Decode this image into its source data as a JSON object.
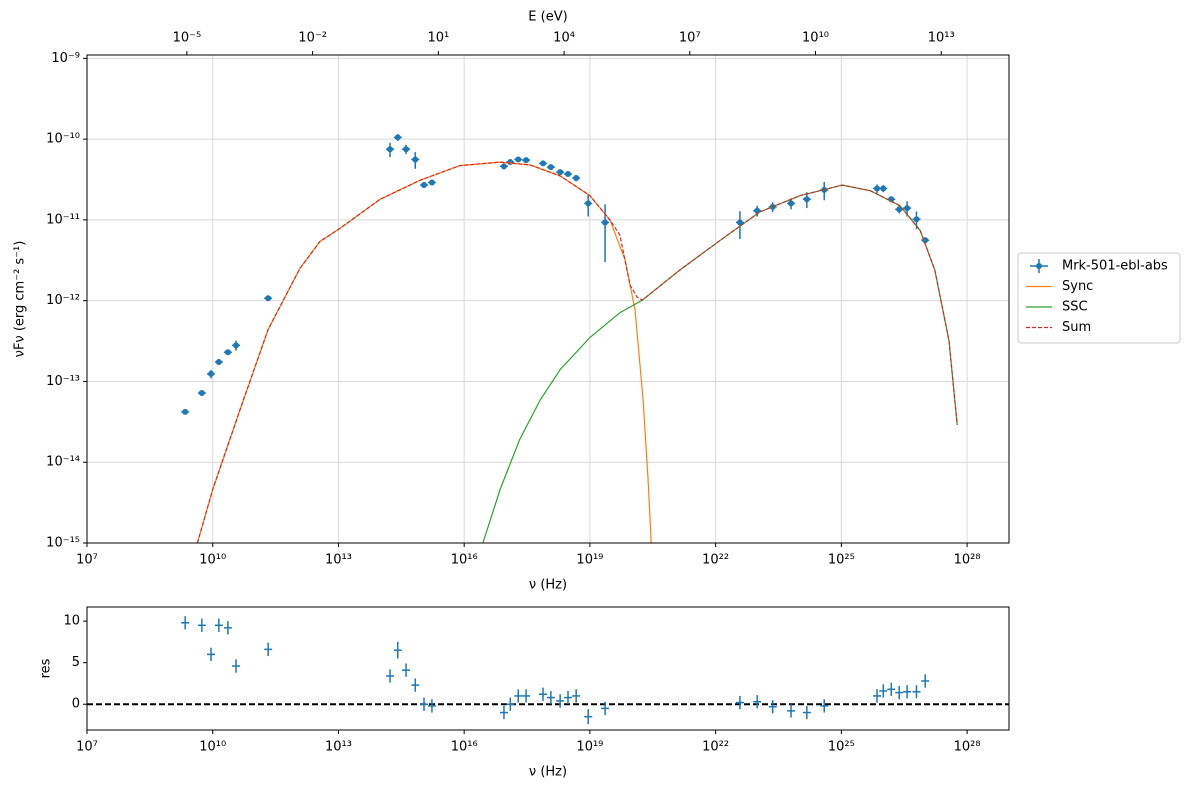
{
  "chart_data": [
    {
      "type": "sed",
      "xlabel": "ν  (Hz)",
      "ylabel": "νFν  (erg cm⁻²  s⁻¹)",
      "x2label": "E (eV)",
      "xlog": true,
      "ylog": true,
      "grid": true,
      "legend": "outside right",
      "xlim": [
        10000000.0,
        1e+29
      ],
      "ylim": [
        1e-15,
        1.1e-09
      ],
      "xticks": [
        {
          "value": 10000000.0,
          "label": "10⁷"
        },
        {
          "value": 10000000000.0,
          "label": "10¹⁰"
        },
        {
          "value": 10000000000000.0,
          "label": "10¹³"
        },
        {
          "value": 1e+16,
          "label": "10¹⁶"
        },
        {
          "value": 1e+19,
          "label": "10¹⁹"
        },
        {
          "value": 1e+22,
          "label": "10²²"
        },
        {
          "value": 1e+25,
          "label": "10²⁵"
        },
        {
          "value": 1e+28,
          "label": "10²⁸"
        }
      ],
      "yticks": [
        {
          "value": 1e-15,
          "label": "10⁻¹⁵"
        },
        {
          "value": 1e-14,
          "label": "10⁻¹⁴"
        },
        {
          "value": 1e-13,
          "label": "10⁻¹³"
        },
        {
          "value": 1e-12,
          "label": "10⁻¹²"
        },
        {
          "value": 1e-11,
          "label": "10⁻¹¹"
        },
        {
          "value": 1e-10,
          "label": "10⁻¹⁰"
        },
        {
          "value": 1e-09,
          "label": "10⁻⁹"
        }
      ],
      "x2lim": [
        4.136e-08,
        413600000000000.0
      ],
      "x2ticks": [
        {
          "value": 1e-05,
          "label": "10⁻⁵"
        },
        {
          "value": 0.01,
          "label": "10⁻²"
        },
        {
          "value": 10,
          "label": "10¹"
        },
        {
          "value": 10000.0,
          "label": "10⁴"
        },
        {
          "value": 10000000.0,
          "label": "10⁷"
        },
        {
          "value": 10000000000.0,
          "label": "10¹⁰"
        },
        {
          "value": 10000000000000.0,
          "label": "10¹³"
        }
      ],
      "series": [
        {
          "name": "Mrk-501-ebl-abs",
          "color": "#1f77b4",
          "style": "errorbar",
          "marker": "circle",
          "x": [
            2200000000.0,
            5500000000.0,
            9100000000.0,
            14000000000.0,
            23000000000.0,
            36000000000.0,
            210000000000.0,
            170000000000000.0,
            260000000000000.0,
            410000000000000.0,
            680000000000000.0,
            1100000000000000.0,
            1700000000000000.0,
            8.9e+16,
            1.26e+17,
            1.95e+17,
            3e+17,
            7.6e+17,
            1.17e+18,
            1.95e+18,
            3e+18,
            4.7e+18,
            9.1e+18,
            2.3e+19,
            3.8e+22,
            9.8e+22,
            2.3e+23,
            6.3e+23,
            1.5e+24,
            3.9e+24,
            7.1e+25,
            1e+26,
            1.55e+26,
            2.4e+26,
            3.7e+26,
            6.2e+26,
            1e+27
          ],
          "values": [
            4.2e-14,
            7.2e-14,
            1.24e-13,
            1.74e-13,
            2.3e-13,
            2.8e-13,
            1.07e-12,
            7.5e-11,
            1.05e-10,
            7.5e-11,
            5.6e-11,
            2.7e-11,
            2.9e-11,
            4.6e-11,
            5.2e-11,
            5.6e-11,
            5.5e-11,
            5e-11,
            4.5e-11,
            3.9e-11,
            3.7e-11,
            3.3e-11,
            1.6e-11,
            9.3e-12,
            9.3e-12,
            1.3e-11,
            1.45e-11,
            1.6e-11,
            1.8e-11,
            2.35e-11,
            2.45e-11,
            2.45e-11,
            1.8e-11,
            1.35e-11,
            1.4e-11,
            1.02e-11,
            5.6e-12
          ],
          "errors": [
            3e-15,
            5e-15,
            1.5e-14,
            1.2e-14,
            1.5e-14,
            4e-14,
            8e-14,
            1.5e-11,
            1e-11,
            1e-11,
            1.3e-11,
            2e-12,
            2e-12,
            4e-12,
            3e-12,
            4e-12,
            3e-12,
            3e-12,
            3e-12,
            3e-12,
            2e-12,
            3e-12,
            5e-12,
            6.3e-12,
            3.5e-12,
            2e-12,
            2e-12,
            2.5e-12,
            4e-12,
            6e-12,
            3e-12,
            2.5e-12,
            1.5e-12,
            1.5e-12,
            3e-12,
            2.5e-12,
            5e-13
          ]
        },
        {
          "name": "Sync",
          "color": "#ff7f0e",
          "style": "solid",
          "x": [
            4300000000.0,
            10000000000.0,
            45000000000.0,
            210000000000.0,
            1200000000000.0,
            3600000000000.0,
            11000000000000.0,
            98000000000000.0,
            890000000000000.0,
            7900000000000000.0,
            7.2e+16,
            3.7e+17,
            1.95e+18,
            1e+19,
            3e+19,
            6.9e+19,
            1.2e+20,
            1.86e+20,
            2.45e+20,
            2.9e+20
          ],
          "values": [
            1e-15,
            4.6e-15,
            4.5e-14,
            4.4e-13,
            2.5e-12,
            5.4e-12,
            7.9e-12,
            1.8e-11,
            3.1e-11,
            4.7e-11,
            5.2e-11,
            4.8e-11,
            3.5e-11,
            2e-11,
            1e-11,
            3.2e-12,
            7.6e-13,
            5.9e-14,
            6e-15,
            1e-15
          ]
        },
        {
          "name": "SSC",
          "color": "#2ca02c",
          "style": "solid",
          "x": [
            2.8e+16,
            7.2e+16,
            2.1e+17,
            6.5e+17,
            1.95e+18,
            1e+19,
            5.2e+19,
            1.8e+20,
            1.4e+21,
            1.3e+22,
            1.15e+23,
            1.05e+24,
            1.05e+25,
            4.9e+25,
            2.5e+26,
            7.6e+26,
            1.7e+27,
            3.7e+27,
            5.8e+27
          ],
          "values": [
            1e-15,
            4.6e-15,
            1.9e-14,
            5.9e-14,
            1.4e-13,
            3.5e-13,
            7.1e-13,
            1.02e-12,
            2.4e-12,
            5.6e-12,
            1.26e-11,
            2e-11,
            2.7e-11,
            2.3e-11,
            1.5e-11,
            7.4e-12,
            2.4e-12,
            3.2e-13,
            2.9e-14
          ]
        },
        {
          "name": "Sum",
          "color": "#d62728",
          "style": "dashed",
          "x": [
            4300000000.0,
            10000000000.0,
            45000000000.0,
            210000000000.0,
            1200000000000.0,
            3600000000000.0,
            11000000000000.0,
            98000000000000.0,
            890000000000000.0,
            7900000000000000.0,
            7.2e+16,
            3.7e+17,
            1.95e+18,
            1e+19,
            3e+19,
            5.2e+19,
            9.1e+19,
            1.35e+20,
            1.8e+20,
            1.4e+21,
            1.3e+22,
            1.15e+23,
            1.05e+24,
            1.05e+25,
            4.9e+25,
            2.5e+26,
            7.6e+26,
            1.7e+27,
            3.7e+27,
            5.8e+27
          ],
          "values": [
            1e-15,
            4.6e-15,
            4.5e-14,
            4.4e-13,
            2.5e-12,
            5.4e-12,
            7.9e-12,
            1.8e-11,
            3.1e-11,
            4.7e-11,
            5.2e-11,
            4.8e-11,
            3.5e-11,
            2e-11,
            1e-11,
            6.5e-12,
            1.55e-12,
            1.1e-12,
            1.02e-12,
            2.4e-12,
            5.6e-12,
            1.26e-11,
            2e-11,
            2.7e-11,
            2.3e-11,
            1.5e-11,
            7.4e-12,
            2.4e-12,
            3.2e-13,
            2.9e-14
          ]
        }
      ]
    },
    {
      "type": "residual",
      "xlabel": "ν  (Hz)",
      "ylabel": "res",
      "xlog": true,
      "ylog": false,
      "grid": false,
      "reference_line": 0,
      "xlim": [
        10000000.0,
        1e+29
      ],
      "ylim": [
        -3.1,
        11.7
      ],
      "xticks": [
        {
          "value": 10000000.0,
          "label": "10⁷"
        },
        {
          "value": 10000000000.0,
          "label": "10¹⁰"
        },
        {
          "value": 10000000000000.0,
          "label": "10¹³"
        },
        {
          "value": 1e+16,
          "label": "10¹⁶"
        },
        {
          "value": 1e+19,
          "label": "10¹⁹"
        },
        {
          "value": 1e+22,
          "label": "10²²"
        },
        {
          "value": 1e+25,
          "label": "10²⁵"
        },
        {
          "value": 1e+28,
          "label": "10²⁸"
        }
      ],
      "yticks": [
        0,
        5,
        10
      ],
      "series": [
        {
          "color": "#1f77b4",
          "style": "errorbar",
          "marker": "plus",
          "x": [
            2200000000.0,
            5500000000.0,
            9100000000.0,
            14000000000.0,
            23000000000.0,
            36000000000.0,
            210000000000.0,
            170000000000000.0,
            260000000000000.0,
            410000000000000.0,
            680000000000000.0,
            1100000000000000.0,
            1700000000000000.0,
            8.9e+16,
            1.26e+17,
            1.95e+17,
            3e+17,
            7.6e+17,
            1.17e+18,
            1.95e+18,
            3e+18,
            4.7e+18,
            9.1e+18,
            2.3e+19,
            3.8e+22,
            9.8e+22,
            2.3e+23,
            6.3e+23,
            1.5e+24,
            3.9e+24,
            7.1e+25,
            1e+26,
            1.55e+26,
            2.4e+26,
            3.7e+26,
            6.2e+26,
            1e+27
          ],
          "values": [
            9.8,
            9.5,
            6,
            9.5,
            9.2,
            4.6,
            6.6,
            3.4,
            6.5,
            4.1,
            2.3,
            0,
            -0.2,
            -1,
            0,
            1,
            1,
            1.2,
            0.8,
            0.4,
            0.8,
            1,
            -1.5,
            -0.5,
            0.2,
            0.3,
            -0.3,
            -0.8,
            -1,
            -0.2,
            1,
            1.6,
            1.8,
            1.4,
            1.5,
            1.5,
            2.8
          ],
          "errors": [
            0.8,
            0.8,
            0.8,
            0.8,
            0.8,
            0.8,
            0.8,
            0.8,
            1.0,
            0.8,
            0.8,
            0.8,
            0.8,
            0.8,
            0.8,
            0.8,
            0.8,
            0.8,
            0.8,
            0.8,
            0.8,
            0.8,
            0.9,
            0.8,
            0.8,
            0.8,
            0.8,
            0.8,
            0.8,
            0.8,
            0.8,
            0.8,
            0.8,
            0.8,
            0.8,
            0.8,
            0.8
          ]
        }
      ]
    }
  ]
}
